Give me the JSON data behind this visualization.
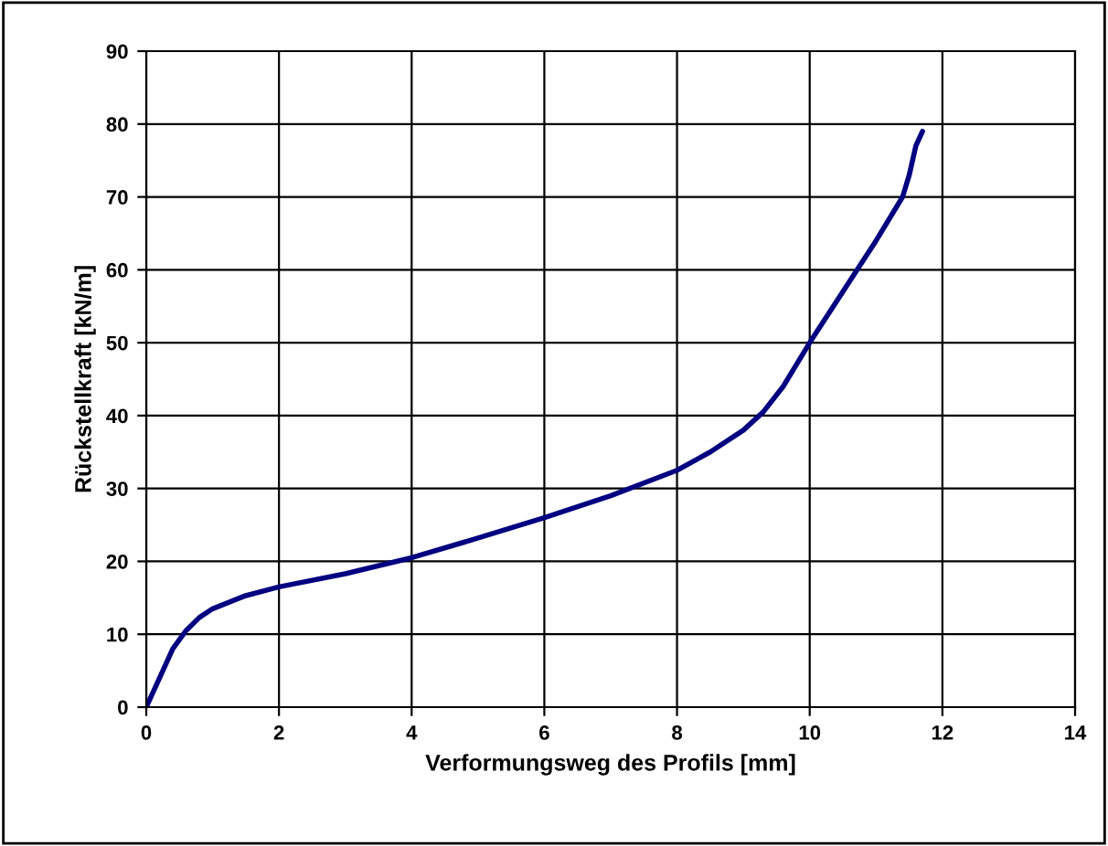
{
  "chart_data": {
    "type": "line",
    "xlabel": "Verformungsweg des Profils [mm]",
    "ylabel": "Rückstellkraft [kN/m]",
    "xlim": [
      0,
      14
    ],
    "ylim": [
      0,
      90
    ],
    "xticks": [
      0,
      2,
      4,
      6,
      8,
      10,
      12,
      14
    ],
    "yticks": [
      0,
      10,
      20,
      30,
      40,
      50,
      60,
      70,
      80,
      90
    ],
    "grid": true,
    "marker": "none",
    "line_style": "solid",
    "series": [
      {
        "color": "#000080",
        "x": [
          0,
          0.2,
          0.4,
          0.6,
          0.8,
          1.0,
          1.5,
          2,
          3,
          4,
          5,
          6,
          7,
          8,
          8.5,
          9,
          9.3,
          9.6,
          10,
          10.5,
          11,
          11.4,
          11.5,
          11.6,
          11.7
        ],
        "values": [
          0,
          4,
          8,
          10.5,
          12.3,
          13.5,
          15.3,
          16.5,
          18.3,
          20.5,
          23.2,
          26,
          29,
          32.5,
          35,
          38,
          40.5,
          44,
          50,
          57,
          64,
          70,
          73,
          77,
          79
        ]
      }
    ]
  }
}
